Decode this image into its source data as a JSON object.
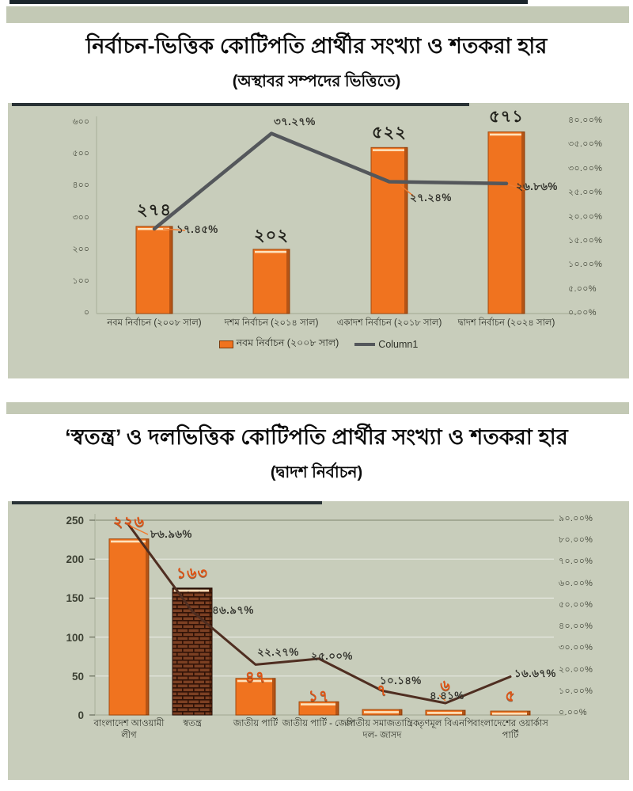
{
  "page": {
    "background": "#ffffff",
    "panel_color": "#c8cdbb",
    "accent_orange": "#f0731f",
    "chart1_line_color": "#54575b",
    "chart2_line_color": "#4f2e21",
    "top_strip_dark": "#1b252c",
    "divider_color": "#c3c9b5"
  },
  "chart_data": [
    {
      "type": "bar",
      "title": "নির্বাচন-ভিত্তিক কোটিপতি প্রার্থীর সংখ্যা ও শতকরা হার",
      "subtitle": "(অস্থাবর সম্পদের ভিত্তিতে)",
      "categories": [
        "নবম নির্বাচন (২০০৮ সাল)",
        "দশম নির্বাচন (২০১৪ সাল)",
        "একাদশ নির্বাচন (২০১৮ সাল)",
        "দ্বাদশ নির্বাচন (২০২৪ সাল)"
      ],
      "series": [
        {
          "kind": "bar",
          "name": "নবম নির্বাচন (২০০৮ সাল)",
          "values": [
            274,
            202,
            522,
            571
          ],
          "value_labels": [
            "২৭৪",
            "২০২",
            "৫২২",
            "৫৭১"
          ],
          "color": "#f0731f"
        },
        {
          "kind": "line",
          "name": "Column1",
          "values": [
            17.45,
            37.27,
            27.24,
            26.86
          ],
          "value_labels": [
            "১৭.৪৫%",
            "৩৭.২৭%",
            "২৭.২৪%",
            "২৬.৮৬%"
          ],
          "color": "#54575b"
        }
      ],
      "left_axis": {
        "min": 0,
        "max": 600,
        "tick_labels": [
          "৬০০",
          "৫০০",
          "৪০০",
          "৩০০",
          "২০০",
          "১০০",
          "০"
        ]
      },
      "right_axis": {
        "min": 0,
        "max": 40,
        "tick_labels": [
          "৪০.০০%",
          "৩৫.০০%",
          "৩০.০০%",
          "২৫.০০%",
          "২০.০০%",
          "১৫.০০%",
          "১০.০০%",
          "৫.০০%",
          "০.০০%"
        ]
      },
      "legend": [
        {
          "label": "নবম নির্বাচন (২০০৮ সাল)",
          "marker": "bar"
        },
        {
          "label": "Column1",
          "marker": "line"
        }
      ]
    },
    {
      "type": "bar",
      "title": "‘স্বতন্ত্র’ ও দলভিত্তিক কোটিপতি প্রার্থীর সংখ্যা ও শতকরা হার",
      "subtitle": "(দ্বাদশ নির্বাচন)",
      "categories": [
        "বাংলাদেশ আওয়ামী লীগ",
        "স্বতন্ত্র",
        "জাতীয় পার্টি",
        "জাতীয় পার্টি - জেপি",
        "জাতীয় সমাজতান্ত্রিক দল- জাসদ",
        "তৃণমূল বিএনপি",
        "বাংলাদেশের ওয়ার্কাস পার্টি"
      ],
      "series": [
        {
          "kind": "bar",
          "values": [
            226,
            163,
            47,
            17,
            7,
            6,
            5
          ],
          "value_labels": [
            "২২৬",
            "১৬৩",
            "৪৭",
            "১৭",
            "৭",
            "৬",
            "৫"
          ],
          "color": "#f0731f",
          "special_bar_index": 1
        },
        {
          "kind": "line",
          "values": [
            86.96,
            46.97,
            22.27,
            25.0,
            10.14,
            4.41,
            16.67
          ],
          "value_labels": [
            "৮৬.৯৬%",
            "৪৬.৯৭%",
            "২২.২৭%",
            "২৫.০০%",
            "১০.১৪%",
            "৪.৪১%",
            "১৬.৬৭%"
          ],
          "color": "#4f2e21"
        }
      ],
      "left_axis": {
        "min": 0,
        "max": 250,
        "tick_labels": [
          "250",
          "200",
          "150",
          "100",
          "50",
          "0"
        ]
      },
      "right_axis": {
        "min": 0,
        "max": 90,
        "tick_labels": [
          "৯০.০০%",
          "৮০.০০%",
          "৭০.০০%",
          "৬০.০০%",
          "৫০.০০%",
          "৪০.০০%",
          "৩০.০০%",
          "২০.০০%",
          "১০.০০%",
          "০.০০%"
        ]
      },
      "legend": []
    }
  ]
}
